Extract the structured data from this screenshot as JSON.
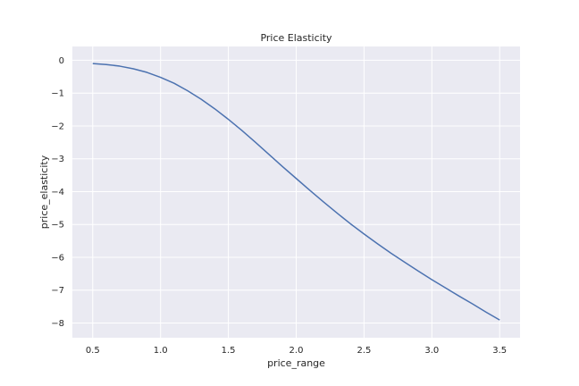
{
  "chart_data": {
    "type": "line",
    "title": "Price Elasticity",
    "xlabel": "price_range",
    "ylabel": "price_elasticity",
    "xlim": [
      0.35,
      3.65
    ],
    "ylim": [
      -8.45,
      0.42
    ],
    "xticks": [
      0.5,
      1.0,
      1.5,
      2.0,
      2.5,
      3.0,
      3.5
    ],
    "xtick_labels": [
      "0.5",
      "1.0",
      "1.5",
      "2.0",
      "2.5",
      "3.0",
      "3.5"
    ],
    "yticks": [
      0,
      -1,
      -2,
      -3,
      -4,
      -5,
      -6,
      -7,
      -8
    ],
    "ytick_labels": [
      "0",
      "−1",
      "−2",
      "−3",
      "−4",
      "−5",
      "−6",
      "−7",
      "−8"
    ],
    "grid": true,
    "colors": {
      "background": "#eaeaf2",
      "grid": "#ffffff",
      "line": "#4c72b0"
    },
    "series": [
      {
        "x": [
          0.5,
          0.6,
          0.7,
          0.8,
          0.9,
          1.0,
          1.1,
          1.2,
          1.3,
          1.4,
          1.5,
          1.6,
          1.7,
          1.8,
          1.9,
          2.0,
          2.1,
          2.2,
          2.3,
          2.4,
          2.5,
          2.6,
          2.7,
          2.8,
          2.9,
          3.0,
          3.1,
          3.2,
          3.3,
          3.4,
          3.5
        ],
        "values": [
          -0.1,
          -0.13,
          -0.18,
          -0.26,
          -0.37,
          -0.52,
          -0.7,
          -0.93,
          -1.19,
          -1.48,
          -1.8,
          -2.14,
          -2.5,
          -2.87,
          -3.24,
          -3.6,
          -3.96,
          -4.31,
          -4.65,
          -4.98,
          -5.29,
          -5.59,
          -5.88,
          -6.15,
          -6.42,
          -6.68,
          -6.93,
          -7.18,
          -7.42,
          -7.67,
          -7.91
        ]
      }
    ]
  }
}
